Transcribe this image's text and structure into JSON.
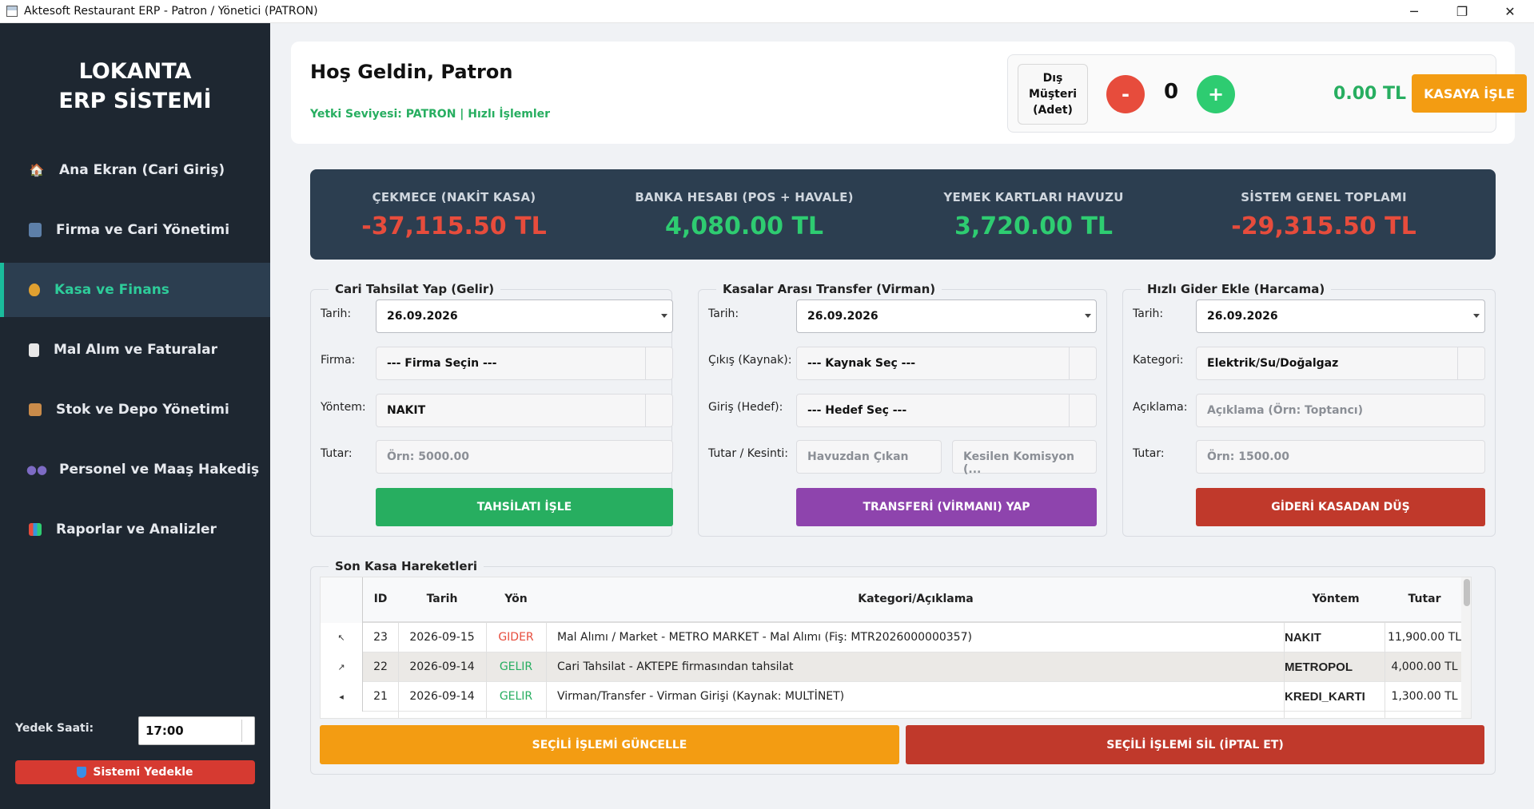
{
  "window": {
    "title": "Aktesoft Restaurant ERP - Patron / Yönetici (PATRON)",
    "controls": [
      "─",
      "❐",
      "✕"
    ]
  },
  "sidebar": {
    "brand_line1": "LOKANTA",
    "brand_line2": "ERP SİSTEMİ",
    "items": [
      {
        "label": "Ana Ekran (Cari Giriş)",
        "icon": "home-icon",
        "active": false
      },
      {
        "label": "Firma ve Cari Yönetimi",
        "icon": "building-icon",
        "active": false
      },
      {
        "label": "Kasa ve Finans",
        "icon": "money-bag-icon",
        "active": true
      },
      {
        "label": "Mal Alım ve Faturalar",
        "icon": "invoice-icon",
        "active": false
      },
      {
        "label": "Stok ve Depo Yönetimi",
        "icon": "package-icon",
        "active": false
      },
      {
        "label": "Personel ve Maaş Hakediş",
        "icon": "people-icon",
        "active": false
      },
      {
        "label": "Raporlar ve Analizler",
        "icon": "bar-chart-icon",
        "active": false
      }
    ],
    "backup_label": "Yedek Saati:",
    "backup_time": "17:00",
    "backup_button": "Sistemi Yedekle"
  },
  "header": {
    "welcome": "Hoş Geldin, Patron",
    "permission": "Yetki Seviyesi: PATRON | Hızlı İşlemler",
    "customer_label": "Dış Müşteri (Adet)",
    "minus": "-",
    "count": "0",
    "plus": "+",
    "amount": "0.00 TL",
    "cash_button": "KASAYA İŞLE"
  },
  "stats": [
    {
      "label": "ÇEKMECE (NAKİT KASA)",
      "value": "-37,115.50 TL",
      "status": "negative"
    },
    {
      "label": "BANKA HESABI (POS + HAVALE)",
      "value": "4,080.00 TL",
      "status": "positive"
    },
    {
      "label": "YEMEK KARTLARI HAVUZU",
      "value": "3,720.00 TL",
      "status": "positive"
    },
    {
      "label": "SİSTEM GENEL TOPLAMI",
      "value": "-29,315.50 TL",
      "status": "negative"
    }
  ],
  "collection": {
    "title": "Cari Tahsilat Yap (Gelir)",
    "date_label": "Tarih:",
    "date": "26.09.2026",
    "firm_label": "Firma:",
    "firm_value": "--- Firma Seçin ---",
    "method_label": "Yöntem:",
    "method_value": "NAKIT",
    "amount_label": "Tutar:",
    "amount_placeholder": "Örn: 5000.00",
    "button": "TAHSİLATI İŞLE"
  },
  "transfer": {
    "title": "Kasalar Arası Transfer (Virman)",
    "date_label": "Tarih:",
    "date": "26.09.2026",
    "source_label": "Çıkış (Kaynak):",
    "source_value": "--- Kaynak Seç ---",
    "target_label": "Giriş (Hedef):",
    "target_value": "--- Hedef Seç ---",
    "amount_label": "Tutar / Kesinti:",
    "amount_placeholder": "Havuzdan Çıkan",
    "commission_placeholder": "Kesilen Komisyon (...",
    "button": "TRANSFERİ (VİRMANI) YAP"
  },
  "expense": {
    "title": "Hızlı Gider Ekle (Harcama)",
    "date_label": "Tarih:",
    "date": "26.09.2026",
    "category_label": "Kategori:",
    "category_value": "Elektrik/Su/Doğalgaz",
    "desc_label": "Açıklama:",
    "desc_placeholder": "Açıklama (Örn: Toptancı)",
    "amount_label": "Tutar:",
    "amount_placeholder": "Örn: 1500.00",
    "button": "GİDERİ KASADAN DÜŞ"
  },
  "movements": {
    "title": "Son Kasa Hareketleri",
    "columns": [
      "ID",
      "Tarih",
      "Yön",
      "Kategori/Açıklama",
      "Yöntem",
      "Tutar"
    ],
    "rows": [
      {
        "id": "23",
        "date": "2026-09-15",
        "direction": "GIDER",
        "desc": "Mal Alımı / Market - METRO MARKET - Mal Alımı (Fiş: MTR2026000000357)",
        "method": "NAKIT",
        "amount": "11,900.00 TL"
      },
      {
        "id": "22",
        "date": "2026-09-14",
        "direction": "GELIR",
        "desc": "Cari Tahsilat - AKTEPE firmasından tahsilat",
        "method": "METROPOL",
        "amount": "4,000.00 TL"
      },
      {
        "id": "21",
        "date": "2026-09-14",
        "direction": "GELIR",
        "desc": "Virman/Transfer - Virman Girişi (Kaynak: MULTİNET)",
        "method": "KREDI_KARTI",
        "amount": "1,300.00 TL"
      }
    ],
    "update_button": "SEÇİLİ İŞLEMİ GÜNCELLE",
    "delete_button": "SEÇİLİ İŞLEMİ SİL (İPTAL ET)"
  },
  "colors": {
    "sidebar_bg": "#1e2731",
    "accent_teal": "#1abc9c",
    "positive": "#2ecc71",
    "negative": "#e74c3c",
    "orange": "#f39c12",
    "purple": "#8e44ad",
    "green_button": "#27ae60",
    "red_button": "#c0392b"
  }
}
